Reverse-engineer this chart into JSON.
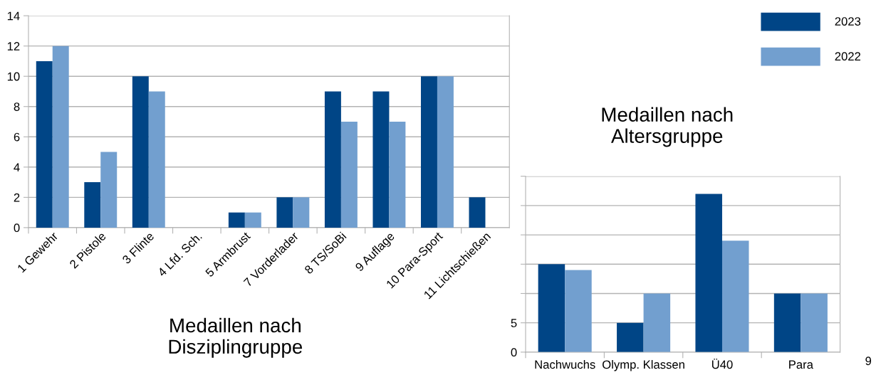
{
  "chart_data": [
    {
      "type": "bar",
      "title": "Medaillen nach\nDisziplingruppe",
      "categories": [
        "1 Gewehr",
        "2 Pistole",
        "3 Flinte",
        "4 Lfd. Sch.",
        "5 Armbrust",
        "7 Vorderlader",
        "8 TS/SoBi",
        "9 Auflage",
        "10 Para-Sport",
        "11 Lichtschießen"
      ],
      "series": [
        {
          "name": "2023",
          "color": "#004586",
          "values": [
            11,
            3,
            10,
            0,
            1,
            2,
            9,
            9,
            10,
            2
          ]
        },
        {
          "name": "2022",
          "color": "#729fcf",
          "values": [
            12,
            5,
            9,
            0,
            1,
            2,
            7,
            7,
            10,
            0
          ]
        }
      ],
      "ylim": [
        0,
        14
      ],
      "yticks": [
        0,
        2,
        4,
        6,
        8,
        10,
        12,
        14
      ],
      "grid": "y",
      "legend": "top right"
    },
    {
      "type": "bar",
      "title": "Medaillen nach\nAltersgruppe",
      "categories": [
        "Nachwuchs",
        "Olymp. Klassen",
        "Ü40",
        "Para"
      ],
      "series": [
        {
          "color": "#004586",
          "values": [
            15,
            5,
            27,
            10
          ]
        },
        {
          "color": "#729fcf",
          "values": [
            14,
            10,
            19,
            10
          ]
        }
      ],
      "ylim": [
        0,
        30
      ],
      "yticks": [
        0,
        5,
        {
          "value": 10,
          "label": null
        },
        {
          "value": 15,
          "label": null
        },
        {
          "value": 20,
          "label": null
        },
        {
          "value": 25,
          "label": null
        },
        {
          "value": 30,
          "label": null
        }
      ],
      "grid": "y",
      "annotations": [
        "9"
      ]
    }
  ]
}
